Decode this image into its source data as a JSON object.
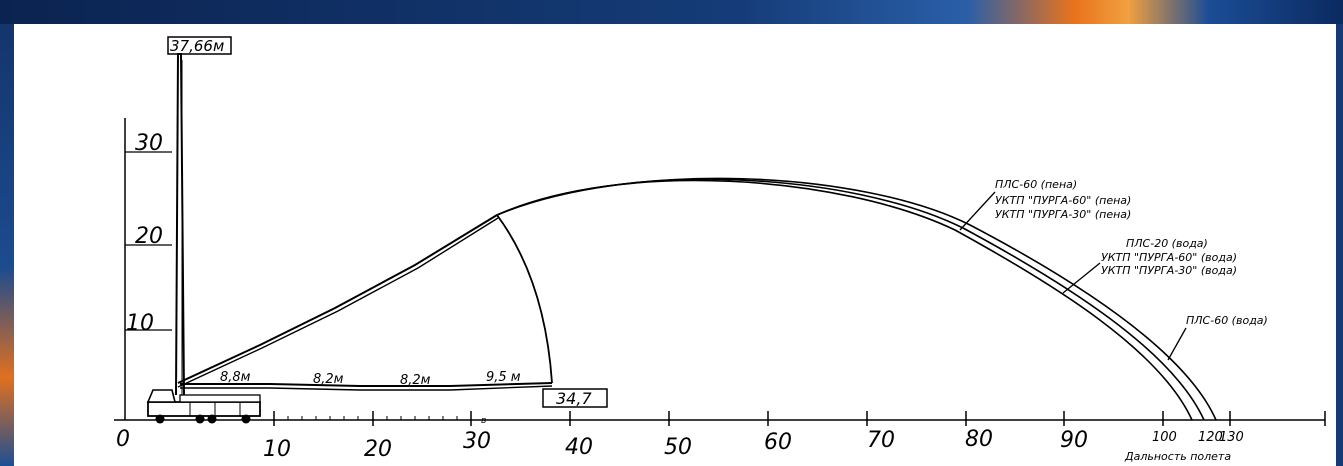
{
  "colors": {
    "line": "#000000",
    "background": "#ffffff",
    "frame": "#0e2a5c",
    "accent": "#e9731c"
  },
  "diagram": {
    "max_height_label": "37,66м",
    "max_reach_label": "34,7",
    "y_scale": [
      "10",
      "20",
      "30"
    ],
    "x_scale": [
      "0",
      "10",
      "20",
      "30",
      "40",
      "50",
      "60",
      "70",
      "80",
      "90",
      "100",
      "120",
      "130"
    ],
    "x_axis_title": "Дальность полета",
    "boom_sections": [
      "8,8м",
      "8,2м",
      "8,2м",
      "9,5 м"
    ],
    "stray_mark": "в",
    "labels": {
      "foam_group": [
        "ПЛС-60 (пена)",
        "УКТП \"ПУРГА-60\" (пена)",
        "УКТП \"ПУРГА-30\" (пена)"
      ],
      "water_group": [
        "ПЛС-20 (вода)",
        "УКТП \"ПУРГА-60\" (вода)",
        "УКТП \"ПУРГА-30\" (вода)"
      ],
      "water_plc60": "ПЛС-60 (вода)"
    }
  }
}
